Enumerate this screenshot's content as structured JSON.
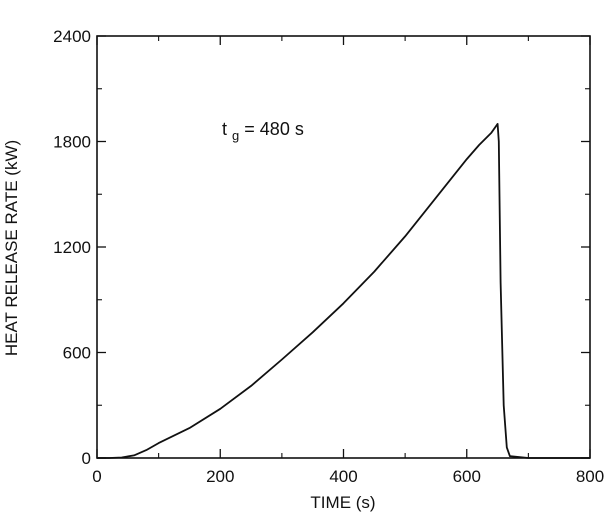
{
  "chart_data": {
    "type": "line",
    "xlabel": "TIME (s)",
    "ylabel": "HEAT RELEASE RATE (kW)",
    "xlim": [
      0,
      800
    ],
    "ylim": [
      0,
      2400
    ],
    "xticks": [
      0,
      200,
      400,
      600,
      800
    ],
    "yticks": [
      0,
      600,
      1200,
      1800,
      2400
    ],
    "grid": false,
    "annotation": {
      "main": "t",
      "subscript": "g",
      "rest": " = 480 s"
    },
    "series": [
      {
        "x": [
          0,
          20,
          40,
          60,
          80,
          100,
          150,
          200,
          250,
          300,
          350,
          400,
          450,
          500,
          550,
          600,
          620,
          640,
          650,
          652,
          655,
          660,
          665,
          670,
          700,
          800
        ],
        "y": [
          0,
          0,
          3,
          15,
          45,
          85,
          170,
          280,
          410,
          560,
          715,
          880,
          1060,
          1260,
          1480,
          1700,
          1780,
          1850,
          1900,
          1800,
          1000,
          300,
          60,
          10,
          0,
          0
        ]
      }
    ],
    "colors": {
      "line": "#111111",
      "axis": "#111111",
      "background": "#ffffff"
    }
  }
}
